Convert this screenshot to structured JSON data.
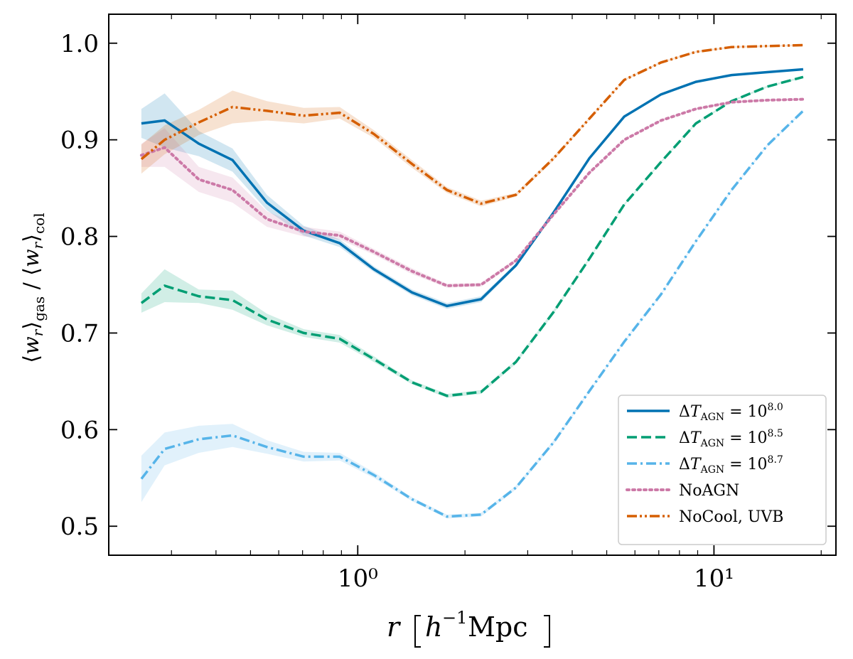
{
  "chart_data": {
    "type": "line",
    "xscale": "log",
    "xlim": [
      0.2,
      22
    ],
    "ylim": [
      0.47,
      1.03
    ],
    "xlabel": "r  [h⁻¹Mpc]",
    "ylabel": "⟨w_r⟩_gas / ⟨w_r⟩_col",
    "x_major_ticks": [
      1,
      10
    ],
    "x_tick_labels": [
      "10⁰",
      "10¹"
    ],
    "y_ticks": [
      0.5,
      0.6,
      0.7,
      0.8,
      0.9,
      1.0
    ],
    "y_tick_labels": [
      "0.5",
      "0.6",
      "0.7",
      "0.8",
      "0.9",
      "1.0"
    ],
    "legend_position": "lower-right",
    "x": [
      0.247,
      0.287,
      0.358,
      0.445,
      0.556,
      0.705,
      0.89,
      1.11,
      1.42,
      1.78,
      2.22,
      2.78,
      3.55,
      4.47,
      5.6,
      7.1,
      8.9,
      11.2,
      14.1,
      17.8
    ],
    "series": [
      {
        "name": "ΔT_AGN = 10^8.0",
        "label_main": "ΔT",
        "label_sub": "AGN",
        "label_eq": " = 10",
        "label_exp": "8.0",
        "color": "#0072b2",
        "dash": "solid",
        "values": [
          0.917,
          0.92,
          0.896,
          0.879,
          0.835,
          0.806,
          0.793,
          0.766,
          0.742,
          0.728,
          0.735,
          0.77,
          0.825,
          0.881,
          0.924,
          0.947,
          0.96,
          0.967,
          0.97,
          0.973
        ],
        "band": [
          0.015,
          0.028,
          0.013,
          0.012,
          0.008,
          0.005,
          0.004,
          0.003,
          0.003,
          0.003,
          0.003,
          0.002,
          0.002,
          0.001,
          0.001,
          0.001,
          0.001,
          0.001,
          0.001,
          0.001
        ]
      },
      {
        "name": "ΔT_AGN = 10^8.5",
        "label_main": "ΔT",
        "label_sub": "AGN",
        "label_eq": " = 10",
        "label_exp": "8.5",
        "color": "#009e73",
        "dash": "dashed",
        "values": [
          0.731,
          0.749,
          0.738,
          0.734,
          0.714,
          0.7,
          0.694,
          0.673,
          0.649,
          0.635,
          0.639,
          0.67,
          0.722,
          0.777,
          0.833,
          0.877,
          0.917,
          0.94,
          0.955,
          0.965
        ],
        "band": [
          0.01,
          0.017,
          0.007,
          0.01,
          0.006,
          0.004,
          0.004,
          0.003,
          0.002,
          0.002,
          0.002,
          0.002,
          0.002,
          0.001,
          0.001,
          0.001,
          0.001,
          0.001,
          0.001,
          0.001
        ]
      },
      {
        "name": "ΔT_AGN = 10^8.7",
        "label_main": "ΔT",
        "label_sub": "AGN",
        "label_eq": " = 10",
        "label_exp": "8.7",
        "color": "#56b4e9",
        "dash": "dashdot",
        "values": [
          0.549,
          0.58,
          0.59,
          0.594,
          0.582,
          0.572,
          0.572,
          0.553,
          0.528,
          0.51,
          0.512,
          0.54,
          0.587,
          0.64,
          0.691,
          0.74,
          0.795,
          0.848,
          0.894,
          0.93
        ],
        "band": [
          0.024,
          0.017,
          0.014,
          0.012,
          0.007,
          0.005,
          0.004,
          0.003,
          0.002,
          0.002,
          0.002,
          0.002,
          0.002,
          0.001,
          0.001,
          0.001,
          0.001,
          0.001,
          0.001,
          0.001
        ]
      },
      {
        "name": "NoAGN",
        "label_main": "NoAGN",
        "color": "#cc79a7",
        "dash": "dotted",
        "values": [
          0.884,
          0.892,
          0.859,
          0.848,
          0.818,
          0.805,
          0.801,
          0.784,
          0.764,
          0.749,
          0.75,
          0.775,
          0.823,
          0.866,
          0.9,
          0.92,
          0.932,
          0.939,
          0.941,
          0.942
        ],
        "band": [
          0.012,
          0.02,
          0.013,
          0.013,
          0.008,
          0.005,
          0.004,
          0.003,
          0.003,
          0.002,
          0.002,
          0.002,
          0.002,
          0.001,
          0.001,
          0.001,
          0.001,
          0.001,
          0.001,
          0.001
        ]
      },
      {
        "name": "NoCool, UVB",
        "label_main": "NoCool, UVB",
        "color": "#d55e00",
        "dash": "dashdotdot",
        "values": [
          0.88,
          0.9,
          0.918,
          0.934,
          0.93,
          0.925,
          0.928,
          0.906,
          0.875,
          0.848,
          0.834,
          0.843,
          0.881,
          0.922,
          0.962,
          0.98,
          0.991,
          0.996,
          0.997,
          0.998
        ],
        "band": [
          0.015,
          0.015,
          0.013,
          0.017,
          0.01,
          0.008,
          0.006,
          0.004,
          0.004,
          0.003,
          0.003,
          0.002,
          0.002,
          0.001,
          0.001,
          0.001,
          0.001,
          0.001,
          0.001,
          0.001
        ]
      }
    ]
  }
}
